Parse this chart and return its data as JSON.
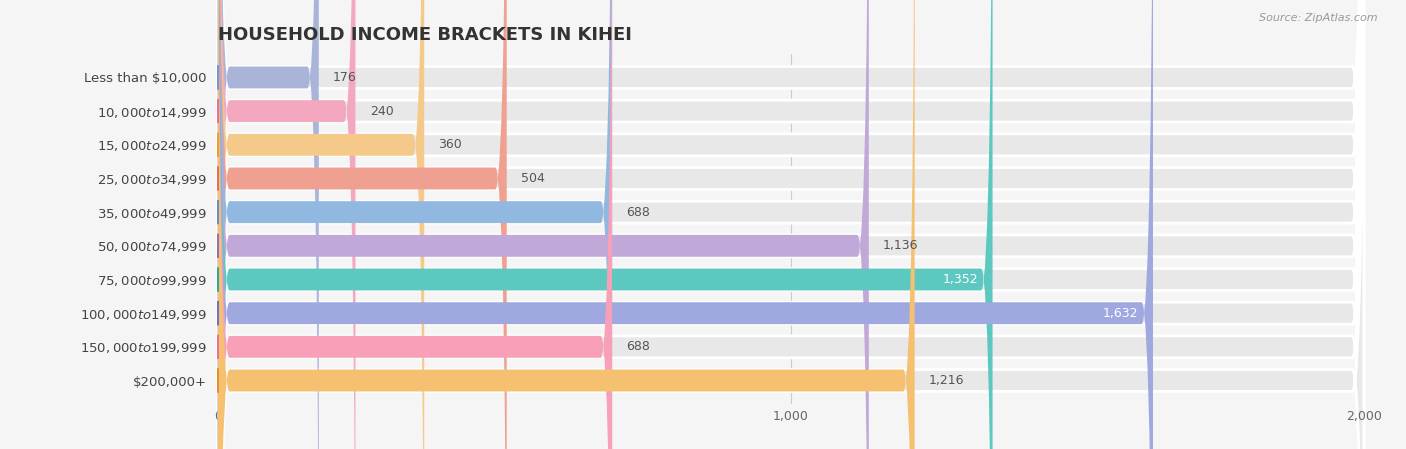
{
  "title": "HOUSEHOLD INCOME BRACKETS IN KIHEI",
  "source": "Source: ZipAtlas.com",
  "categories": [
    "Less than $10,000",
    "$10,000 to $14,999",
    "$15,000 to $24,999",
    "$25,000 to $34,999",
    "$35,000 to $49,999",
    "$50,000 to $74,999",
    "$75,000 to $99,999",
    "$100,000 to $149,999",
    "$150,000 to $199,999",
    "$200,000+"
  ],
  "values": [
    176,
    240,
    360,
    504,
    688,
    1136,
    1352,
    1632,
    688,
    1216
  ],
  "bar_colors": [
    "#aab4d8",
    "#f4a8c0",
    "#f5c98a",
    "#f0a090",
    "#90b8e0",
    "#c0a8d8",
    "#5cc8c0",
    "#a0a8e0",
    "#f8a0b8",
    "#f5c070"
  ],
  "dot_colors": [
    "#8090c8",
    "#e87090",
    "#e8a030",
    "#e07060",
    "#6090c8",
    "#9070b8",
    "#30a898",
    "#7070c0",
    "#e87090",
    "#e09030"
  ],
  "xlim": [
    0,
    2000
  ],
  "background_color": "#f5f5f5",
  "bar_bg_color": "#e8e8e8",
  "title_fontsize": 13,
  "label_fontsize": 9.5,
  "value_fontsize": 9
}
